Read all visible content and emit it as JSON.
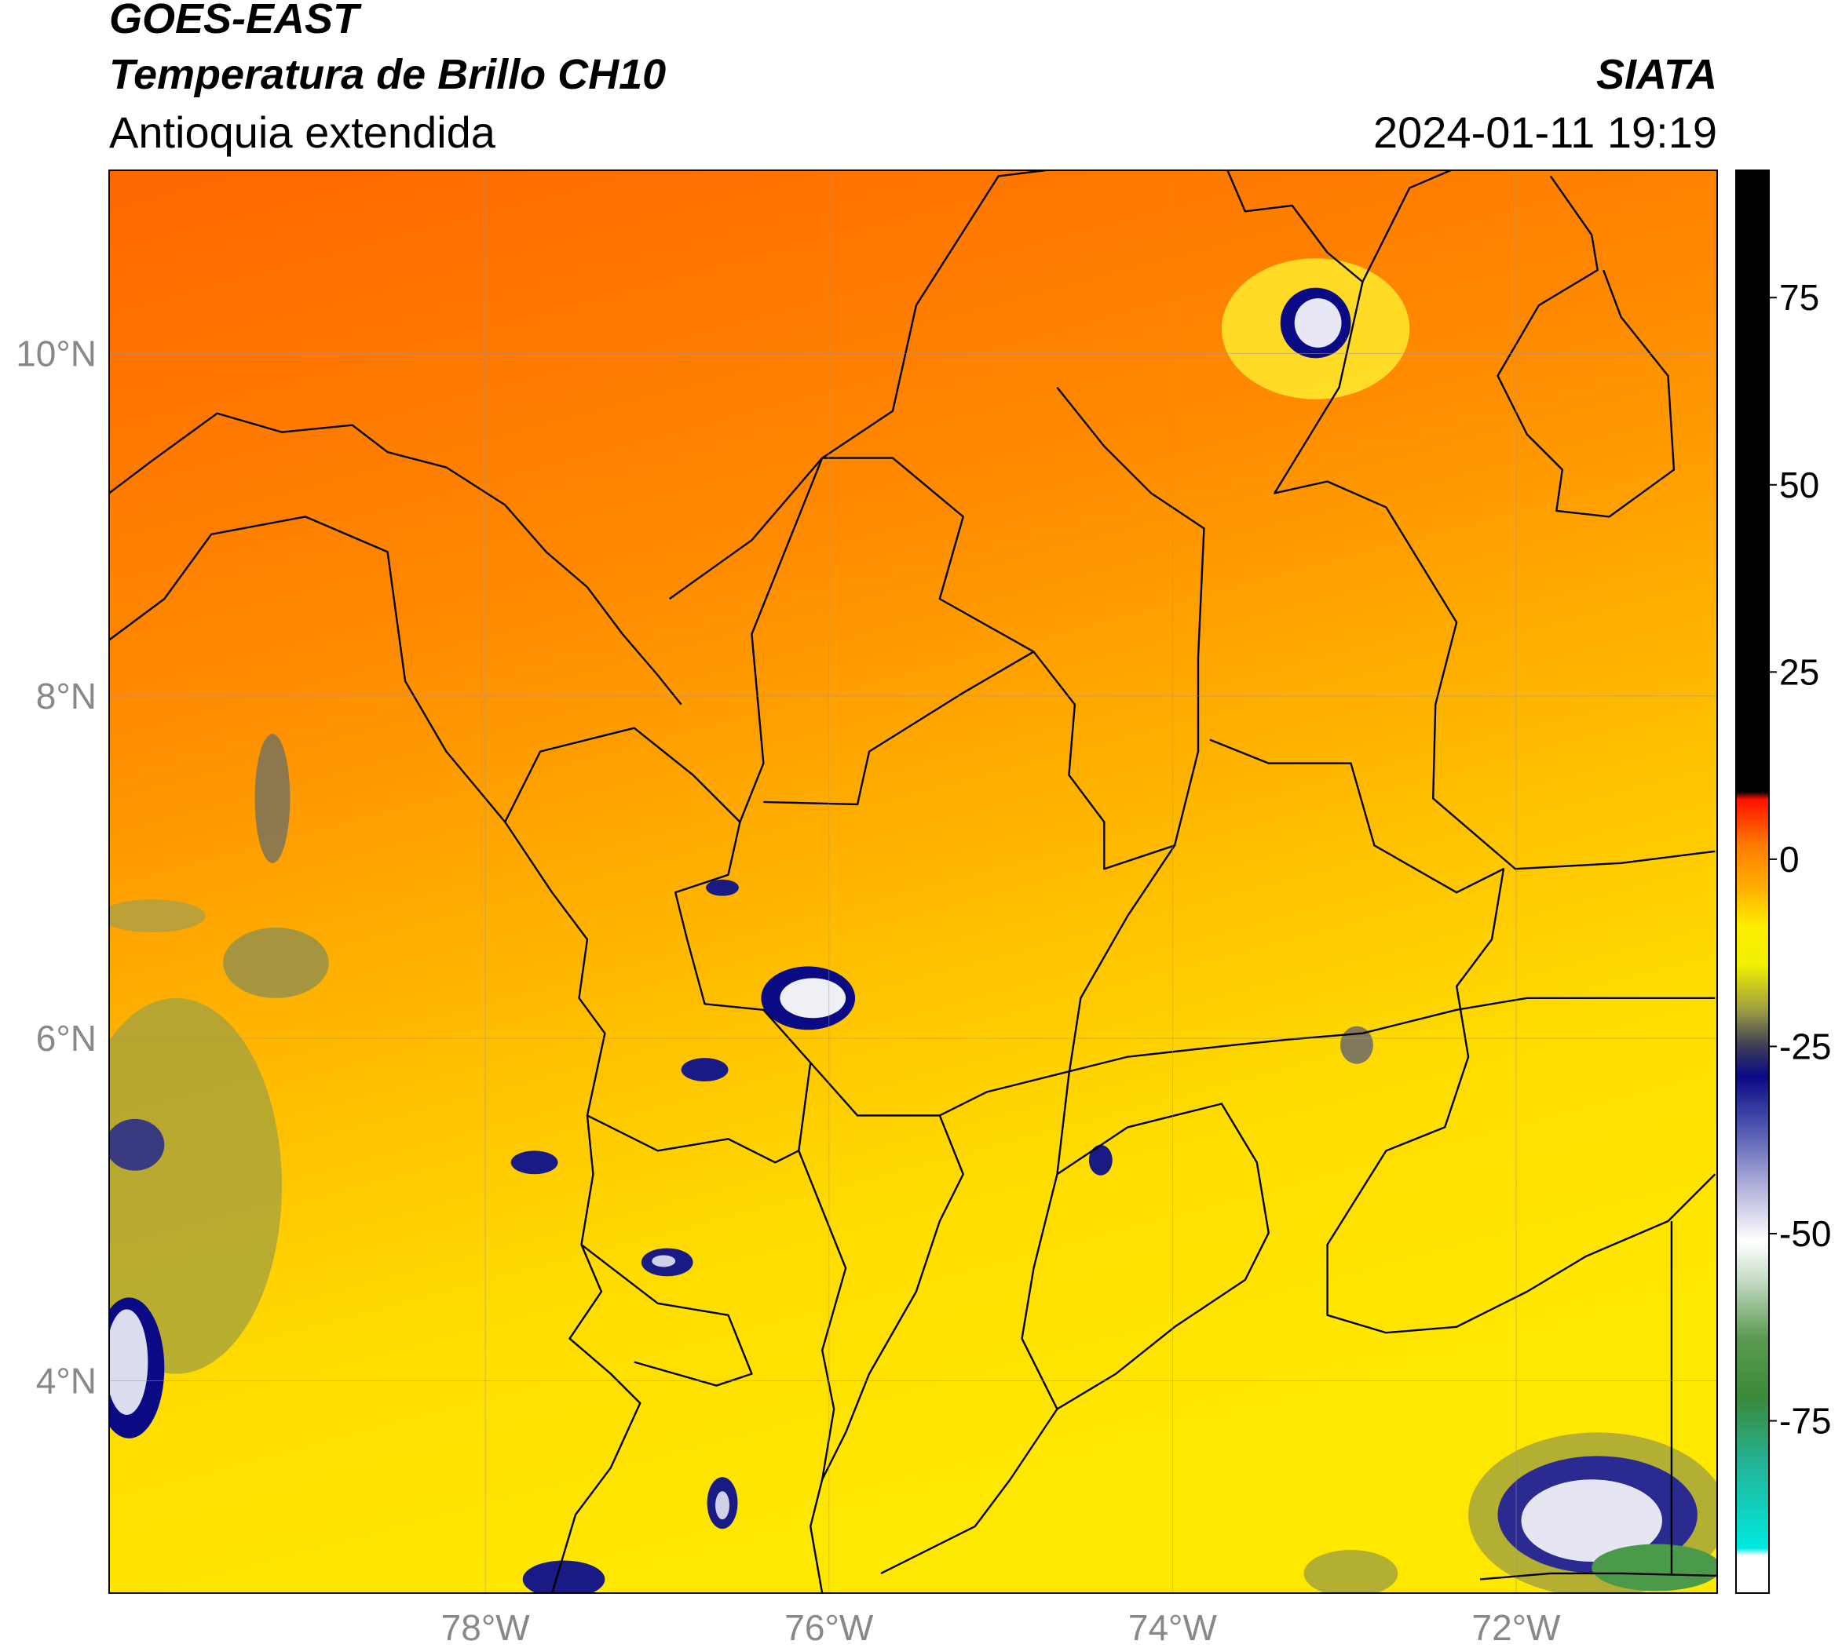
{
  "header": {
    "satellite": "GOES-EAST",
    "product": "Temperatura de Brillo CH10",
    "region": "Antioquia extendida",
    "agency": "SIATA",
    "timestamp": "2024-01-11 19:19"
  },
  "map": {
    "xlim": [
      -80.19,
      -70.83
    ],
    "ylim": [
      2.76,
      11.07
    ],
    "xticks": [
      {
        "value": -78,
        "label": "78°W"
      },
      {
        "value": -76,
        "label": "76°W"
      },
      {
        "value": -74,
        "label": "74°W"
      },
      {
        "value": -72,
        "label": "72°W"
      }
    ],
    "yticks": [
      {
        "value": 4,
        "label": "4°N"
      },
      {
        "value": 6,
        "label": "6°N"
      },
      {
        "value": 8,
        "label": "8°N"
      },
      {
        "value": 10,
        "label": "10°N"
      }
    ],
    "grid": true
  },
  "colorbar": {
    "lim": [
      -98,
      92
    ],
    "ticks": [
      -75,
      -50,
      -25,
      0,
      25,
      50,
      75
    ],
    "colors": [
      {
        "value": -98,
        "color": "#ffffff"
      },
      {
        "value": -93,
        "color": "#ffffff"
      },
      {
        "value": -92,
        "color": "#00e8e0"
      },
      {
        "value": -80,
        "color": "#25b090"
      },
      {
        "value": -72,
        "color": "#3a8a3a"
      },
      {
        "value": -64,
        "color": "#5a9a50"
      },
      {
        "value": -56,
        "color": "#c8dcc8"
      },
      {
        "value": -51,
        "color": "#ffffff"
      },
      {
        "value": -44,
        "color": "#b4b4dc"
      },
      {
        "value": -36,
        "color": "#5058b0"
      },
      {
        "value": -29,
        "color": "#0a0a85"
      },
      {
        "value": -25,
        "color": "#3c3c58"
      },
      {
        "value": -20,
        "color": "#a0a040"
      },
      {
        "value": -14,
        "color": "#f0f000"
      },
      {
        "value": -9,
        "color": "#ffee00"
      },
      {
        "value": -4,
        "color": "#ffb000"
      },
      {
        "value": 2,
        "color": "#ff7a00"
      },
      {
        "value": 8,
        "color": "#ff1000"
      },
      {
        "value": 9,
        "color": "#000000"
      },
      {
        "value": 92,
        "color": "#000000"
      }
    ]
  }
}
